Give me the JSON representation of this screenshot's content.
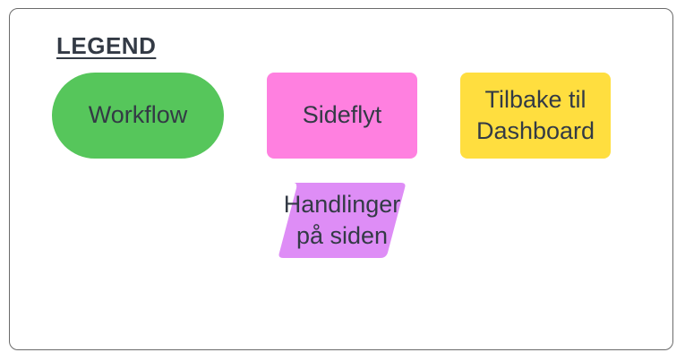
{
  "legend": {
    "title": "LEGEND",
    "items": [
      {
        "label": "Workflow",
        "shape": "rounded-pill",
        "color": "#56c65b"
      },
      {
        "label": "Sideflyt",
        "shape": "rounded-rectangle",
        "color": "#ff80e0"
      },
      {
        "label": "Tilbake til\nDashboard",
        "shape": "rounded-rectangle",
        "color": "#ffde3f"
      },
      {
        "label": "Handlinger\npå siden",
        "shape": "parallelogram",
        "color": "#de8df6"
      }
    ]
  }
}
